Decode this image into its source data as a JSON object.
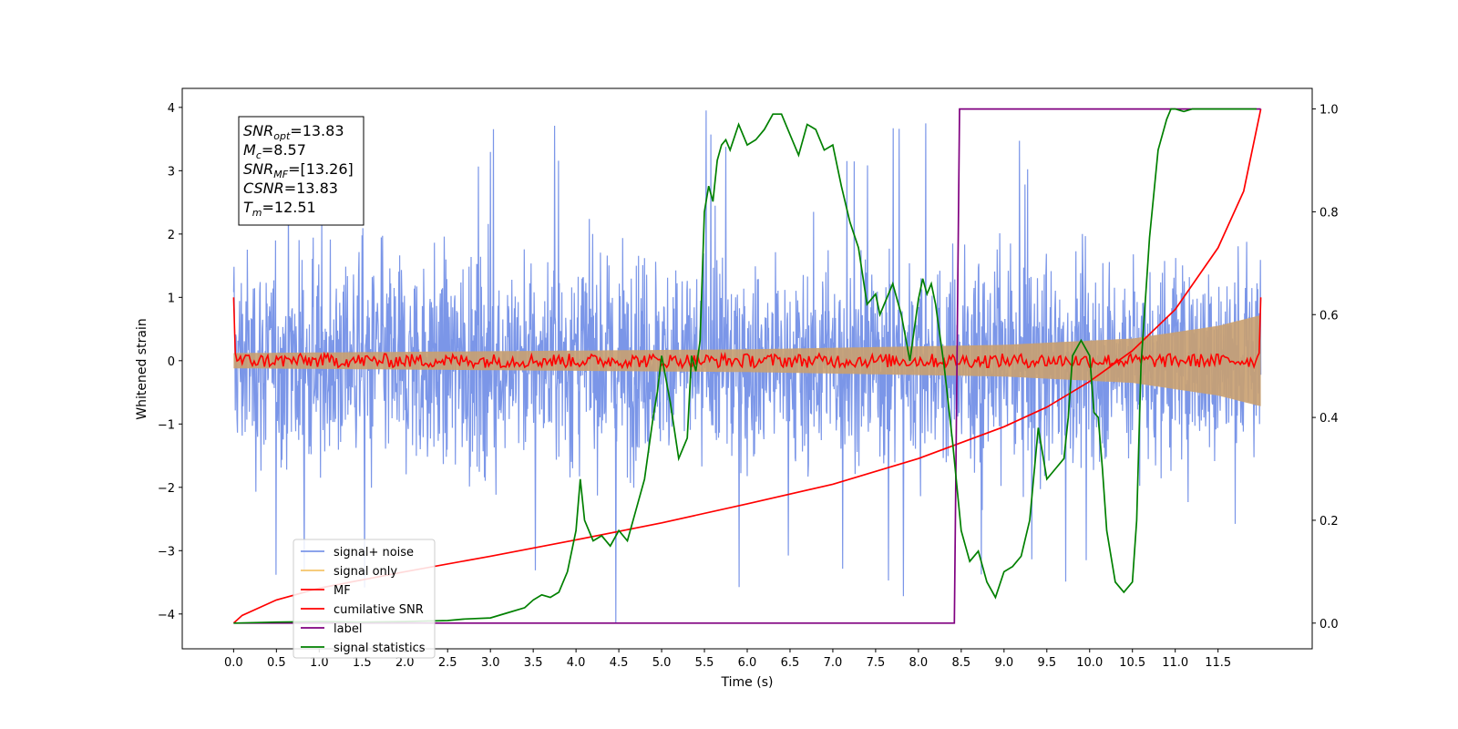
{
  "chart_data": {
    "type": "line",
    "xlabel": "Time (s)",
    "ylabel": "Whitened strain",
    "xlim": [
      -0.6,
      12.6
    ],
    "ylim": [
      -4.55,
      4.3
    ],
    "y2lim": [
      -0.05,
      1.04
    ],
    "x_ticks": [
      "0.0",
      "0.5",
      "1.0",
      "1.5",
      "2.0",
      "2.5",
      "3.0",
      "3.5",
      "4.0",
      "4.5",
      "5.0",
      "5.5",
      "6.0",
      "6.5",
      "7.0",
      "7.5",
      "8.0",
      "8.5",
      "9.0",
      "9.5",
      "10.0",
      "10.5",
      "11.0",
      "11.5"
    ],
    "y_ticks": [
      "4",
      "3",
      "2",
      "1",
      "0",
      "−1",
      "−2",
      "−3",
      "−4"
    ],
    "y2_ticks": [
      "1.0",
      "0.8",
      "0.6",
      "0.4",
      "0.2",
      "0.0"
    ],
    "info_box": [
      {
        "main": "SNR",
        "sub": "opt",
        "rest": "=13.83"
      },
      {
        "main": "M",
        "sub": "c",
        "rest": "=8.57"
      },
      {
        "main": "SNR",
        "sub": "MF",
        "rest": "=[13.26]"
      },
      {
        "main": "CSNR",
        "sub": "",
        "rest": "=13.83"
      },
      {
        "main": "T",
        "sub": "m",
        "rest": "=12.51"
      }
    ],
    "legend": [
      {
        "label": "signal+ noise",
        "color": "#7b96e8"
      },
      {
        "label": "signal only",
        "color": "#f5c56a"
      },
      {
        "label": "MF",
        "color": "#ff0000"
      },
      {
        "label": "cumilative SNR",
        "color": "#ff0000"
      },
      {
        "label": "label",
        "color": "#800080"
      },
      {
        "label": "signal statistics",
        "color": "#008000"
      }
    ],
    "series": [
      {
        "name": "signal+ noise",
        "axis": "left",
        "color": "#7b96e8",
        "description": "whitened noise, amplitude ~±2.8 with spikes to ~±4",
        "x_range": [
          0.0,
          12.0
        ],
        "spike_max": 3.95,
        "spike_min": -4.15
      },
      {
        "name": "signal only",
        "axis": "left",
        "color": "#c9a070",
        "envelope": {
          "x": [
            0.0,
            6.0,
            9.0,
            10.5,
            11.5,
            12.0
          ],
          "amp": [
            0.12,
            0.18,
            0.25,
            0.35,
            0.55,
            0.72
          ]
        }
      },
      {
        "name": "MF",
        "axis": "left",
        "color": "#ff0000",
        "description": "matched-filter output fluctuating around 0 (±0.12), 1.0 at both ends"
      },
      {
        "name": "cumilative SNR",
        "axis": "right",
        "color": "#ff0000",
        "x": [
          0.0,
          0.1,
          0.5,
          1.0,
          2.0,
          3.0,
          4.0,
          5.0,
          6.0,
          7.0,
          8.0,
          9.0,
          9.5,
          10.0,
          10.5,
          11.0,
          11.5,
          11.8,
          12.0
        ],
        "y": [
          0.0,
          0.015,
          0.045,
          0.068,
          0.1,
          0.13,
          0.162,
          0.195,
          0.232,
          0.27,
          0.32,
          0.382,
          0.42,
          0.47,
          0.53,
          0.61,
          0.73,
          0.84,
          1.0
        ]
      },
      {
        "name": "label",
        "axis": "right",
        "color": "#800080",
        "x": [
          0.0,
          8.42,
          8.48,
          12.0
        ],
        "y": [
          0.0,
          0.0,
          1.0,
          1.0
        ]
      },
      {
        "name": "signal statistics",
        "axis": "right",
        "color": "#008000",
        "x": [
          0.0,
          0.5,
          1.0,
          1.5,
          2.0,
          2.5,
          2.7,
          3.0,
          3.2,
          3.4,
          3.5,
          3.6,
          3.7,
          3.8,
          3.9,
          4.0,
          4.05,
          4.1,
          4.2,
          4.3,
          4.4,
          4.5,
          4.6,
          4.7,
          4.8,
          4.9,
          4.95,
          5.0,
          5.1,
          5.2,
          5.3,
          5.35,
          5.4,
          5.45,
          5.5,
          5.55,
          5.6,
          5.65,
          5.7,
          5.75,
          5.8,
          5.9,
          6.0,
          6.1,
          6.2,
          6.3,
          6.4,
          6.5,
          6.6,
          6.7,
          6.8,
          6.9,
          7.0,
          7.1,
          7.2,
          7.3,
          7.4,
          7.5,
          7.55,
          7.6,
          7.7,
          7.8,
          7.9,
          8.0,
          8.05,
          8.1,
          8.15,
          8.2,
          8.3,
          8.4,
          8.5,
          8.6,
          8.7,
          8.8,
          8.9,
          9.0,
          9.1,
          9.2,
          9.3,
          9.4,
          9.5,
          9.6,
          9.7,
          9.75,
          9.8,
          9.9,
          10.0,
          10.05,
          10.1,
          10.15,
          10.2,
          10.3,
          10.4,
          10.5,
          10.55,
          10.6,
          10.7,
          10.8,
          10.9,
          10.95,
          11.0,
          11.1,
          11.2,
          11.3,
          11.5,
          11.7,
          11.8,
          11.9,
          11.95
        ],
        "y": [
          0.0,
          0.002,
          0.003,
          0.002,
          0.003,
          0.005,
          0.008,
          0.01,
          0.02,
          0.03,
          0.045,
          0.055,
          0.05,
          0.06,
          0.1,
          0.18,
          0.28,
          0.2,
          0.16,
          0.17,
          0.15,
          0.18,
          0.16,
          0.22,
          0.28,
          0.4,
          0.45,
          0.52,
          0.43,
          0.32,
          0.36,
          0.52,
          0.49,
          0.55,
          0.8,
          0.85,
          0.82,
          0.9,
          0.93,
          0.94,
          0.92,
          0.97,
          0.93,
          0.94,
          0.96,
          0.99,
          0.99,
          0.95,
          0.91,
          0.97,
          0.96,
          0.92,
          0.93,
          0.85,
          0.78,
          0.73,
          0.62,
          0.64,
          0.6,
          0.62,
          0.66,
          0.6,
          0.51,
          0.63,
          0.67,
          0.64,
          0.66,
          0.62,
          0.5,
          0.35,
          0.18,
          0.12,
          0.14,
          0.08,
          0.05,
          0.1,
          0.11,
          0.13,
          0.2,
          0.38,
          0.28,
          0.3,
          0.32,
          0.4,
          0.52,
          0.55,
          0.52,
          0.41,
          0.4,
          0.3,
          0.18,
          0.08,
          0.06,
          0.08,
          0.2,
          0.5,
          0.75,
          0.92,
          0.98,
          1.0,
          1.0,
          0.995,
          1.0,
          1.0,
          1.0,
          1.0,
          1.0,
          1.0,
          1.0
        ]
      }
    ]
  }
}
